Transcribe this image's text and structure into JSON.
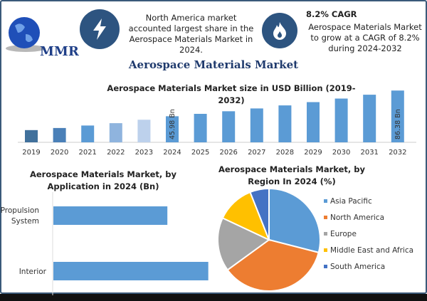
{
  "logo": {
    "text": "MMR"
  },
  "info1": {
    "icon": "lightning-icon",
    "text": "North America market accounted largest share in the Aerospace Materials Market in 2024."
  },
  "info2": {
    "icon": "flame-icon",
    "heading": "8.2% CAGR",
    "text": "Aerospace Materials Market to grow at a CAGR of 8.2% during 2024-2032"
  },
  "main_title": "Aerospace Materials Market",
  "chart_data": [
    {
      "type": "bar",
      "title": "Aerospace Materials Market size in USD Billion (2019-2032)",
      "categories": [
        "2019",
        "2020",
        "2021",
        "2022",
        "2023",
        "2024",
        "2025",
        "2026",
        "2027",
        "2028",
        "2029",
        "2030",
        "2031",
        "2032"
      ],
      "values": [
        24.2,
        27.5,
        31.4,
        35.1,
        40.5,
        45.98,
        49.75,
        53.83,
        58.24,
        63.02,
        68.19,
        73.78,
        79.83,
        86.38
      ],
      "colors": [
        "#41719c",
        "#4a80b8",
        "#5b9bd5",
        "#8fb4de",
        "#bdd1ec",
        "#5b9bd5",
        "#5b9bd5",
        "#5b9bd5",
        "#5b9bd5",
        "#5b9bd5",
        "#5b9bd5",
        "#5b9bd5",
        "#5b9bd5",
        "#5b9bd5"
      ],
      "data_labels": {
        "2024": "45.98 Bn",
        "2032": "86.38 Bn"
      },
      "ylim": [
        5,
        90
      ]
    },
    {
      "type": "bar",
      "orientation": "horizontal",
      "title": "Aerospace Materials Market, by Application in 2024 (Bn)",
      "categories": [
        "Propulsion System",
        "Interior"
      ],
      "values": [
        19.5,
        26.5
      ],
      "color": "#5b9bd5",
      "xlim": [
        0,
        28
      ]
    },
    {
      "type": "pie",
      "title": "Aerospace Materials Market, by Region In 2024 (%)",
      "labels": [
        "Asia Pacific",
        "North America",
        "Europe",
        "Middle East and Africa",
        "South America"
      ],
      "values": [
        29,
        36,
        17,
        12,
        6
      ],
      "colors": [
        "#5b9bd5",
        "#ed7d31",
        "#a5a5a5",
        "#ffc000",
        "#4472c4"
      ],
      "legend": "right"
    }
  ]
}
